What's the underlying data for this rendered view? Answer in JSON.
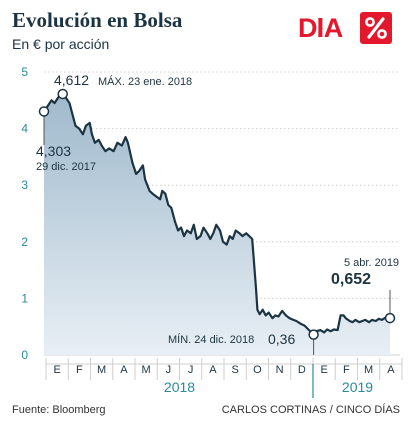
{
  "header": {
    "title": "Evolución en Bolsa",
    "subtitle": "En € por acción"
  },
  "logo": {
    "text": "DIA",
    "color": "#e3182d"
  },
  "footer": {
    "source": "Fuente:  Bloomberg",
    "credit": "CARLOS CORTINAS / CINCO DÍAS"
  },
  "colors": {
    "line": "#1c3442",
    "area_top": "#9fb9cc",
    "area_bottom": "#e8eff5",
    "grid": "#cfcfcf",
    "accent": "#2a8a9a",
    "axis_text": "#2a8a9a"
  },
  "chart_data": {
    "type": "area",
    "title": "Evolución en Bolsa",
    "subtitle": "En € por acción",
    "ylim": [
      0,
      5
    ],
    "yticks": [
      "0",
      "1",
      "2",
      "3",
      "4",
      "5"
    ],
    "x_start": "2017-12-29",
    "x_end": "2019-04-05",
    "month_labels": [
      "E",
      "F",
      "M",
      "A",
      "M",
      "J",
      "J",
      "A",
      "S",
      "O",
      "N",
      "D",
      "E",
      "F",
      "M",
      "A"
    ],
    "year_labels": [
      "2018",
      "2019"
    ],
    "grid": true,
    "series": [
      {
        "points": [
          [
            "2017-12-29",
            4.303
          ],
          [
            "2018-01-03",
            4.4
          ],
          [
            "2018-01-08",
            4.5
          ],
          [
            "2018-01-12",
            4.45
          ],
          [
            "2018-01-17",
            4.55
          ],
          [
            "2018-01-23",
            4.612
          ],
          [
            "2018-01-27",
            4.55
          ],
          [
            "2018-02-01",
            4.45
          ],
          [
            "2018-02-05",
            4.25
          ],
          [
            "2018-02-09",
            4.05
          ],
          [
            "2018-02-14",
            4.0
          ],
          [
            "2018-02-19",
            3.9
          ],
          [
            "2018-02-23",
            4.05
          ],
          [
            "2018-02-28",
            4.1
          ],
          [
            "2018-03-03",
            3.9
          ],
          [
            "2018-03-07",
            3.75
          ],
          [
            "2018-03-12",
            3.8
          ],
          [
            "2018-03-16",
            3.7
          ],
          [
            "2018-03-21",
            3.6
          ],
          [
            "2018-03-26",
            3.65
          ],
          [
            "2018-04-01",
            3.6
          ],
          [
            "2018-04-06",
            3.75
          ],
          [
            "2018-04-12",
            3.7
          ],
          [
            "2018-04-17",
            3.85
          ],
          [
            "2018-04-20",
            3.75
          ],
          [
            "2018-04-26",
            3.4
          ],
          [
            "2018-05-01",
            3.2
          ],
          [
            "2018-05-05",
            3.25
          ],
          [
            "2018-05-10",
            3.35
          ],
          [
            "2018-05-13",
            3.1
          ],
          [
            "2018-05-19",
            2.9
          ],
          [
            "2018-05-23",
            2.85
          ],
          [
            "2018-05-28",
            2.8
          ],
          [
            "2018-06-02",
            2.75
          ],
          [
            "2018-06-05",
            2.9
          ],
          [
            "2018-06-09",
            2.85
          ],
          [
            "2018-06-13",
            2.65
          ],
          [
            "2018-06-17",
            2.6
          ],
          [
            "2018-06-22",
            2.35
          ],
          [
            "2018-06-26",
            2.2
          ],
          [
            "2018-06-30",
            2.25
          ],
          [
            "2018-07-04",
            2.1
          ],
          [
            "2018-07-08",
            2.2
          ],
          [
            "2018-07-13",
            2.15
          ],
          [
            "2018-07-17",
            2.3
          ],
          [
            "2018-07-21",
            2.05
          ],
          [
            "2018-07-26",
            2.1
          ],
          [
            "2018-07-30",
            2.25
          ],
          [
            "2018-08-04",
            2.15
          ],
          [
            "2018-08-08",
            2.05
          ],
          [
            "2018-08-12",
            2.15
          ],
          [
            "2018-08-16",
            2.3
          ],
          [
            "2018-08-21",
            2.2
          ],
          [
            "2018-08-25",
            2.0
          ],
          [
            "2018-08-30",
            1.95
          ],
          [
            "2018-09-03",
            2.1
          ],
          [
            "2018-09-07",
            2.05
          ],
          [
            "2018-09-11",
            2.2
          ],
          [
            "2018-09-16",
            2.15
          ],
          [
            "2018-09-20",
            2.1
          ],
          [
            "2018-09-25",
            2.15
          ],
          [
            "2018-09-29",
            2.1
          ],
          [
            "2018-10-03",
            2.05
          ],
          [
            "2018-10-08",
            1.2
          ],
          [
            "2018-10-10",
            0.8
          ],
          [
            "2018-10-13",
            0.72
          ],
          [
            "2018-10-17",
            0.8
          ],
          [
            "2018-10-21",
            0.7
          ],
          [
            "2018-10-25",
            0.75
          ],
          [
            "2018-10-30",
            0.65
          ],
          [
            "2018-11-03",
            0.7
          ],
          [
            "2018-11-07",
            0.68
          ],
          [
            "2018-11-12",
            0.78
          ],
          [
            "2018-11-17",
            0.7
          ],
          [
            "2018-11-22",
            0.65
          ],
          [
            "2018-11-27",
            0.62
          ],
          [
            "2018-12-01",
            0.6
          ],
          [
            "2018-12-07",
            0.55
          ],
          [
            "2018-12-12",
            0.52
          ],
          [
            "2018-12-17",
            0.45
          ],
          [
            "2018-12-21",
            0.4
          ],
          [
            "2018-12-24",
            0.36
          ],
          [
            "2018-12-28",
            0.42
          ],
          [
            "2019-01-02",
            0.44
          ],
          [
            "2019-01-07",
            0.4
          ],
          [
            "2019-01-11",
            0.45
          ],
          [
            "2019-01-16",
            0.42
          ],
          [
            "2019-01-20",
            0.45
          ],
          [
            "2019-01-25",
            0.44
          ],
          [
            "2019-01-29",
            0.7
          ],
          [
            "2019-02-02",
            0.7
          ],
          [
            "2019-02-05",
            0.65
          ],
          [
            "2019-02-10",
            0.6
          ],
          [
            "2019-02-14",
            0.58
          ],
          [
            "2019-02-18",
            0.62
          ],
          [
            "2019-02-23",
            0.58
          ],
          [
            "2019-02-27",
            0.6
          ],
          [
            "2019-03-03",
            0.62
          ],
          [
            "2019-03-08",
            0.58
          ],
          [
            "2019-03-12",
            0.62
          ],
          [
            "2019-03-17",
            0.6
          ],
          [
            "2019-03-21",
            0.64
          ],
          [
            "2019-03-25",
            0.62
          ],
          [
            "2019-03-30",
            0.66
          ],
          [
            "2019-04-05",
            0.652
          ]
        ]
      }
    ],
    "annotations": [
      {
        "date": "2017-12-29",
        "value_text": "4,303",
        "note": "29 dic. 2017",
        "marker": true
      },
      {
        "date": "2018-01-23",
        "value_text": "4,612",
        "note": "MÁX. 23 ene. 2018",
        "marker": true
      },
      {
        "date": "2018-12-24",
        "value_text": "0,36",
        "note": "MÍN. 24 dic. 2018",
        "marker": true
      },
      {
        "date": "2019-04-05",
        "value_text": "0,652",
        "note": "5 abr. 2019",
        "marker": true
      }
    ]
  }
}
